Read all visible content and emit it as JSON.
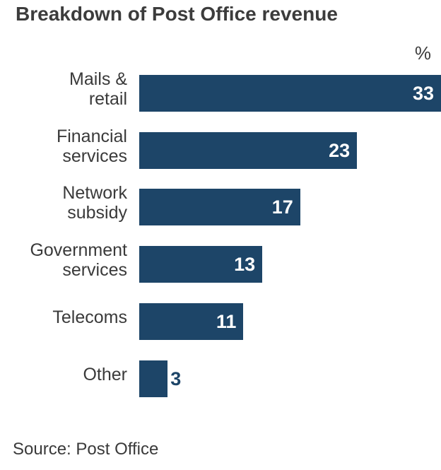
{
  "chart_data": {
    "type": "bar",
    "orientation": "horizontal",
    "title": "Breakdown of Post Office revenue",
    "unit_label": "%",
    "categories": [
      "Mails &\nretail",
      "Financial\nservices",
      "Network\nsubsidy",
      "Government\nservices",
      "Telecoms",
      "Other"
    ],
    "values": [
      33,
      23,
      17,
      13,
      11,
      3
    ],
    "data_labels": [
      "33",
      "23",
      "17",
      "13",
      "11",
      "3"
    ],
    "bar_color": "#1d4568",
    "grid": false,
    "source": "Source: Post Office"
  }
}
